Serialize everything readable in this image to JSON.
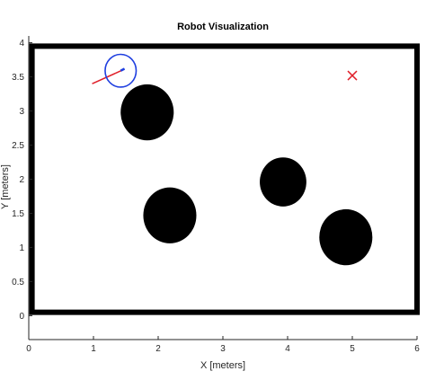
{
  "chart_data": {
    "type": "scatter",
    "title": "Robot Visualization",
    "xlabel": "X [meters]",
    "ylabel": "Y [meters]",
    "xlim": [
      0,
      6
    ],
    "ylim": [
      -0.35,
      4.1
    ],
    "xticks": [
      "0",
      "1",
      "2",
      "3",
      "4",
      "5",
      "6"
    ],
    "yticks": [
      "0",
      "0.5",
      "1",
      "1.5",
      "2",
      "2.5",
      "3",
      "3.5",
      "4"
    ],
    "xtick_values": [
      0,
      1,
      2,
      3,
      4,
      5,
      6
    ],
    "ytick_values": [
      0,
      0.5,
      1,
      1.5,
      2,
      2.5,
      3,
      3.5,
      4
    ],
    "grid": false,
    "walls": {
      "x": [
        0.05,
        6
      ],
      "y": [
        0.05,
        3.95
      ],
      "color": "#000000"
    },
    "obstacles": [
      {
        "x": 1.83,
        "y": 2.98,
        "radius": 0.41
      },
      {
        "x": 2.18,
        "y": 1.47,
        "radius": 0.41
      },
      {
        "x": 3.93,
        "y": 1.96,
        "radius": 0.36
      },
      {
        "x": 4.9,
        "y": 1.15,
        "radius": 0.41
      }
    ],
    "robot": {
      "x": 1.42,
      "y": 3.59,
      "radius": 0.24,
      "heading_tip": {
        "x": 1.48,
        "y": 3.62
      },
      "color": "#1f3fe0"
    },
    "path": {
      "x": [
        0.98,
        1.45
      ],
      "y": [
        3.4,
        3.6
      ],
      "color": "#e0202a"
    },
    "goal": {
      "x": 5.0,
      "y": 3.52,
      "marker": "x",
      "color": "#e0202a"
    },
    "colors": {
      "obstacle": "#000000",
      "axes": "#262626",
      "background": "#ffffff"
    }
  }
}
